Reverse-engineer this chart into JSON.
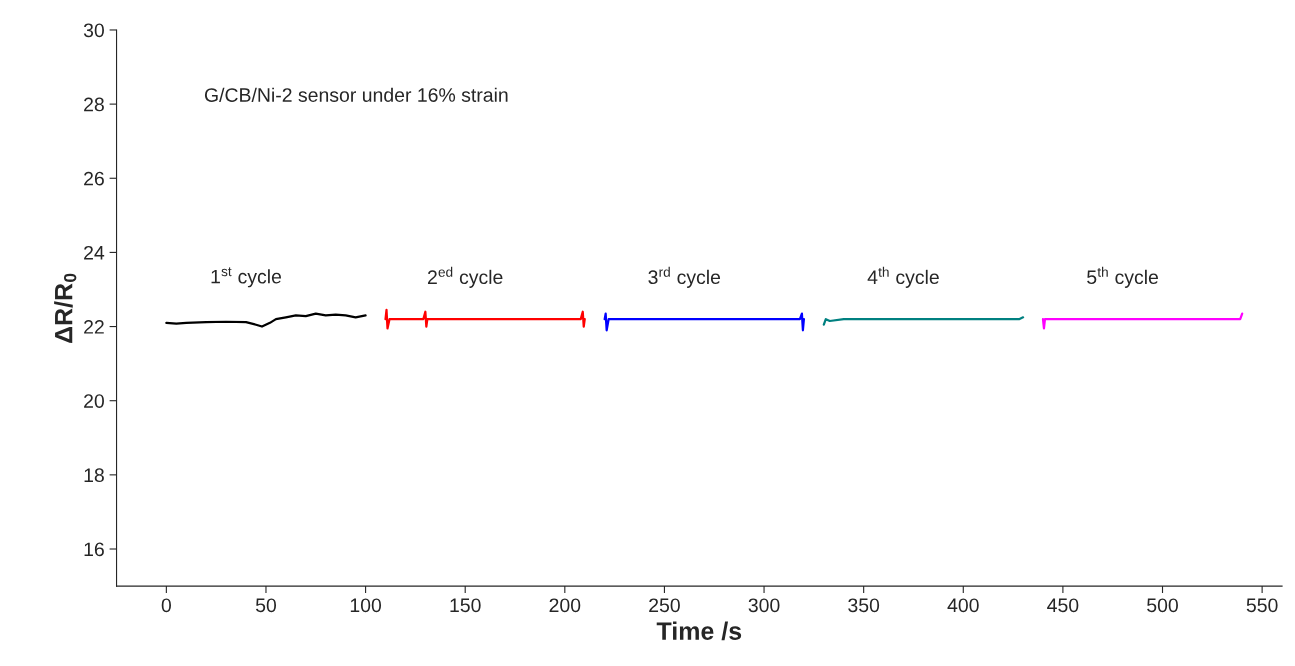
{
  "chart_data": {
    "type": "line",
    "xlabel": "Time /s",
    "ylabel": "ΔR/R$_{0}$",
    "xlim": [
      -25,
      560
    ],
    "xticks": [
      0,
      50,
      100,
      150,
      200,
      250,
      300,
      350,
      400,
      450,
      500,
      550
    ],
    "ylim": [
      15,
      30
    ],
    "yticks": [
      16,
      18,
      20,
      22,
      24,
      26,
      28,
      30
    ],
    "grid": false,
    "legend": false,
    "line_style": "solid",
    "marker": "none",
    "annotations": [
      "G/CB/Ni-2 sensor under 16% strain",
      "1$^{st}$ cycle",
      "2$^{ed}$ cycle",
      "3$^{rd}$ cycle",
      "4$^{th}$ cycle",
      "5$^{th}$ cycle"
    ],
    "series": [
      {
        "color": "#000000",
        "x": [
          0,
          5,
          10,
          20,
          30,
          40,
          45,
          48,
          52,
          55,
          60,
          65,
          70,
          75,
          80,
          85,
          90,
          95,
          100
        ],
        "values": [
          22.1,
          22.08,
          22.1,
          22.12,
          22.13,
          22.12,
          22.05,
          22.0,
          22.1,
          22.2,
          22.25,
          22.3,
          22.28,
          22.35,
          22.3,
          22.32,
          22.3,
          22.25,
          22.3
        ]
      },
      {
        "color": "#ff0000",
        "x": [
          110,
          110.5,
          111,
          112,
          120,
          129,
          130,
          130.5,
          131,
          150,
          170,
          190,
          208,
          209,
          209.5,
          210
        ],
        "values": [
          22.2,
          22.45,
          21.95,
          22.2,
          22.2,
          22.2,
          22.4,
          22.0,
          22.2,
          22.2,
          22.2,
          22.2,
          22.2,
          22.4,
          22.0,
          22.2
        ]
      },
      {
        "color": "#0000ff",
        "x": [
          220,
          220.5,
          221,
          222,
          240,
          260,
          280,
          300,
          318,
          319,
          319.5,
          320
        ],
        "values": [
          22.2,
          22.35,
          21.9,
          22.2,
          22.2,
          22.2,
          22.2,
          22.2,
          22.2,
          22.35,
          21.9,
          22.2
        ]
      },
      {
        "color": "#008080",
        "x": [
          330,
          331,
          333,
          340,
          360,
          380,
          400,
          420,
          428,
          430
        ],
        "values": [
          22.05,
          22.2,
          22.15,
          22.2,
          22.2,
          22.2,
          22.2,
          22.2,
          22.2,
          22.25
        ]
      },
      {
        "color": "#ff00ff",
        "x": [
          440,
          440.5,
          441,
          460,
          475,
          490,
          510,
          530,
          539,
          540
        ],
        "values": [
          22.2,
          21.95,
          22.2,
          22.2,
          22.2,
          22.2,
          22.2,
          22.2,
          22.2,
          22.35
        ]
      }
    ]
  }
}
